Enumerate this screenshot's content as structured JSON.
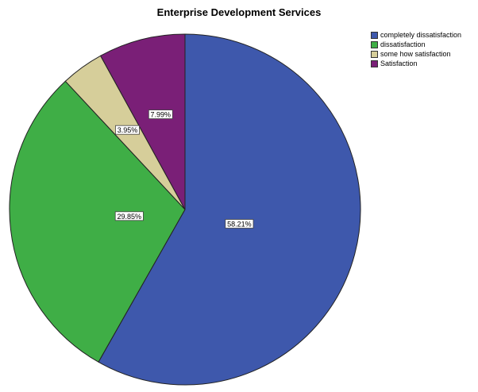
{
  "chart_data": {
    "type": "pie",
    "title": "Enterprise Development Services",
    "categories": [
      "completely dissatisfaction",
      "dissatisfaction",
      "some how satisfaction",
      "Satisfaction"
    ],
    "values": [
      58.21,
      29.85,
      3.95,
      7.99
    ],
    "data_labels": [
      "58.21%",
      "29.85%",
      "3.95%",
      "7.99%"
    ],
    "colors": [
      "#3e58ac",
      "#3fae46",
      "#d6ce9a",
      "#7a1f77"
    ],
    "start_angle_deg": 0,
    "direction": "clockwise",
    "legend_position": "top-right"
  }
}
